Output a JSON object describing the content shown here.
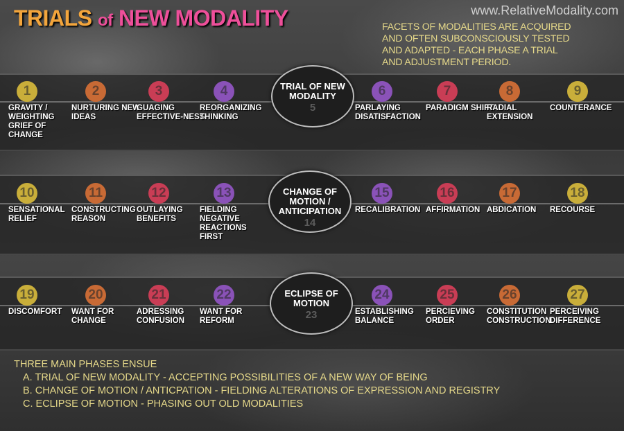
{
  "title": {
    "part1": "TRIALS",
    "part2": "of",
    "part3": "NEW MODALITY"
  },
  "website": "www.RelativeModality.com",
  "intro_lines": [
    "FACETS OF MODALITIES ARE ACQUIRED",
    "AND OFTEN SUBCONSCIOUSLY TESTED",
    "AND ADAPTED - EACH PHASE A TRIAL",
    "AND ADJUSTMENT PERIOD."
  ],
  "colors": {
    "yellow": "#c9ae3a",
    "orange": "#c86a35",
    "red": "#c93d55",
    "purple": "#8a52b8"
  },
  "rows": [
    {
      "phase": {
        "name": "TRIAL OF NEW MODALITY",
        "number": "5"
      },
      "steps": [
        {
          "n": "1",
          "label": "GRAVITY / WEIGHTING GRIEF OF CHANGE",
          "color": "#c9ae3a"
        },
        {
          "n": "2",
          "label": "NURTURING NEW IDEAS",
          "color": "#c86a35"
        },
        {
          "n": "3",
          "label": "GUAGING EFFECTIVE-NESS",
          "color": "#c93d55"
        },
        {
          "n": "4",
          "label": "REORGANIZING THINKING",
          "color": "#8a52b8"
        },
        {
          "n": "6",
          "label": "PARLAYING DISATISFACTION",
          "color": "#8a52b8"
        },
        {
          "n": "7",
          "label": "PARADIGM SHIFT",
          "color": "#c93d55"
        },
        {
          "n": "8",
          "label": "RADIAL EXTENSION",
          "color": "#c86a35"
        },
        {
          "n": "9",
          "label": "COUNTERANCE",
          "color": "#c9ae3a"
        }
      ]
    },
    {
      "phase": {
        "name": "CHANGE OF MOTION / ANTICIPATION",
        "number": "14"
      },
      "steps": [
        {
          "n": "10",
          "label": "SENSATIONAL RELIEF",
          "color": "#c9ae3a"
        },
        {
          "n": "11",
          "label": "CONSTRUCTING REASON",
          "color": "#c86a35"
        },
        {
          "n": "12",
          "label": "OUTLAYING BENEFITS",
          "color": "#c93d55"
        },
        {
          "n": "13",
          "label": "FIELDING NEGATIVE REACTIONS FIRST",
          "color": "#8a52b8"
        },
        {
          "n": "15",
          "label": "RECALIBRATION",
          "color": "#8a52b8"
        },
        {
          "n": "16",
          "label": "AFFIRMATION",
          "color": "#c93d55"
        },
        {
          "n": "17",
          "label": "ABDICATION",
          "color": "#c86a35"
        },
        {
          "n": "18",
          "label": "RECOURSE",
          "color": "#c9ae3a"
        }
      ]
    },
    {
      "phase": {
        "name": "ECLIPSE OF MOTION",
        "number": "23"
      },
      "steps": [
        {
          "n": "19",
          "label": "DISCOMFORT",
          "color": "#c9ae3a"
        },
        {
          "n": "20",
          "label": "WANT FOR CHANGE",
          "color": "#c86a35"
        },
        {
          "n": "21",
          "label": "ADRESSING CONFUSION",
          "color": "#c93d55"
        },
        {
          "n": "22",
          "label": "WANT FOR REFORM",
          "color": "#8a52b8"
        },
        {
          "n": "24",
          "label": "ESTABLISHING BALANCE",
          "color": "#8a52b8"
        },
        {
          "n": "25",
          "label": "PERCIEVING ORDER",
          "color": "#c93d55"
        },
        {
          "n": "26",
          "label": "CONSTITUTION CONSTRUCTION",
          "color": "#c86a35"
        },
        {
          "n": "27",
          "label": "PERCEIVING DIFFERENCE",
          "color": "#c9ae3a"
        }
      ]
    }
  ],
  "footer": {
    "heading": "THREE MAIN PHASES ENSUE",
    "items": [
      "A. TRIAL OF NEW MODALITY -  ACCEPTING POSSIBILITIES OF A NEW WAY OF BEING",
      "B. CHANGE OF MOTION / ANTICPATION - FIELDING ALTERATIONS OF EXPRESSION AND REGISTRY",
      "C. ECLIPSE OF MOTION - PHASING OUT OLD MODALITIES"
    ]
  }
}
